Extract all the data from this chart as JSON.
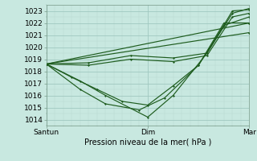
{
  "title": "",
  "xlabel": "Pression niveau de la mer( hPa )",
  "ylabel": "",
  "ylim": [
    1013.5,
    1023.5
  ],
  "xlim": [
    0,
    48
  ],
  "yticks": [
    1014,
    1015,
    1016,
    1017,
    1018,
    1019,
    1020,
    1021,
    1022,
    1023
  ],
  "xtick_positions": [
    0,
    24,
    48
  ],
  "xtick_labels": [
    "Santun",
    "Dim",
    "Mar"
  ],
  "bg_color": "#c8e8e0",
  "grid_major_color": "#a0c8c0",
  "grid_minor_color": "#b8d8d0",
  "line_color": "#1e5c1e",
  "lines": [
    {
      "x": [
        0,
        8,
        14,
        24,
        30,
        38,
        44,
        48
      ],
      "y": [
        1018.6,
        1017.2,
        1016.0,
        1014.2,
        1016.0,
        1019.5,
        1022.8,
        1023.2
      ]
    },
    {
      "x": [
        0,
        8,
        14,
        22,
        28,
        36,
        42,
        48
      ],
      "y": [
        1018.6,
        1016.5,
        1015.3,
        1014.8,
        1015.8,
        1018.5,
        1021.8,
        1022.5
      ]
    },
    {
      "x": [
        0,
        6,
        12,
        18,
        24,
        30,
        36,
        42,
        48
      ],
      "y": [
        1018.6,
        1017.5,
        1016.5,
        1015.5,
        1015.2,
        1016.8,
        1018.5,
        1022.0,
        1022.0
      ]
    },
    {
      "x": [
        0,
        10,
        20,
        30,
        38,
        44,
        48
      ],
      "y": [
        1018.6,
        1018.5,
        1019.0,
        1018.8,
        1019.3,
        1022.5,
        1022.8
      ]
    },
    {
      "x": [
        0,
        10,
        20,
        30,
        38,
        44,
        48
      ],
      "y": [
        1018.6,
        1018.7,
        1019.3,
        1019.1,
        1019.5,
        1023.0,
        1023.1
      ]
    },
    {
      "x": [
        0,
        48
      ],
      "y": [
        1018.6,
        1022.0
      ]
    },
    {
      "x": [
        0,
        48
      ],
      "y": [
        1018.6,
        1021.2
      ]
    }
  ]
}
